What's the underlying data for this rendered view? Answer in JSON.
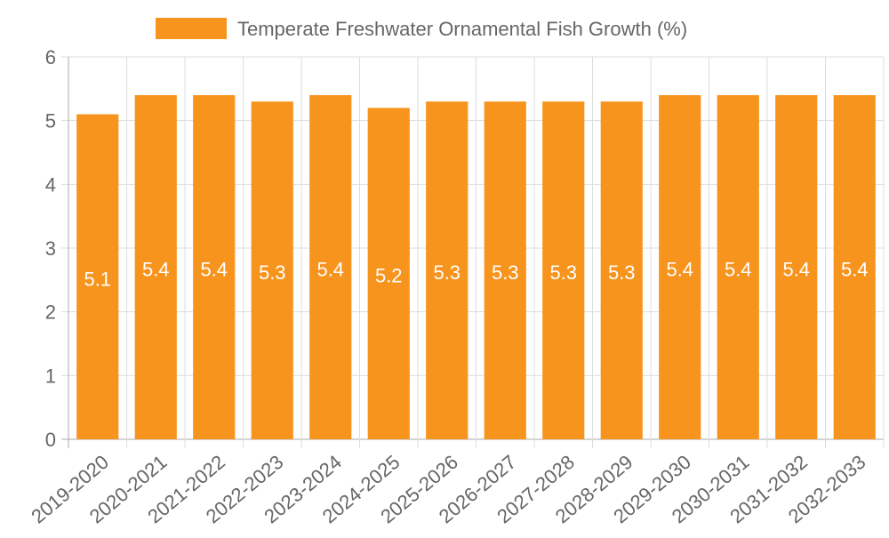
{
  "chart_data": {
    "type": "bar",
    "categories": [
      "2019-2020",
      "2020-2021",
      "2021-2022",
      "2022-2023",
      "2023-2024",
      "2024-2025",
      "2025-2026",
      "2026-2027",
      "2027-2028",
      "2028-2029",
      "2029-2030",
      "2030-2031",
      "2031-2032",
      "2032-2033"
    ],
    "series": [
      {
        "name": "Temperate Freshwater Ornamental Fish Growth (%)",
        "values": [
          5.1,
          5.4,
          5.4,
          5.3,
          5.4,
          5.2,
          5.3,
          5.3,
          5.3,
          5.3,
          5.4,
          5.4,
          5.4,
          5.4
        ],
        "color": "#f7941d"
      }
    ],
    "data_labels": [
      "5.1",
      "5.4",
      "5.4",
      "5.3",
      "5.4",
      "5.2",
      "5.3",
      "5.3",
      "5.3",
      "5.3",
      "5.4",
      "5.4",
      "5.4",
      "5.4"
    ],
    "ylim": [
      0,
      6
    ],
    "yticks": [
      "0",
      "1",
      "2",
      "3",
      "4",
      "5",
      "6"
    ],
    "grid": true,
    "legend_position": "top-center",
    "colors": {
      "bar": "#f7941d",
      "grid": "#dddddd",
      "axis": "#aaaaaa",
      "text": "#666666",
      "label": "#ffffff"
    }
  }
}
